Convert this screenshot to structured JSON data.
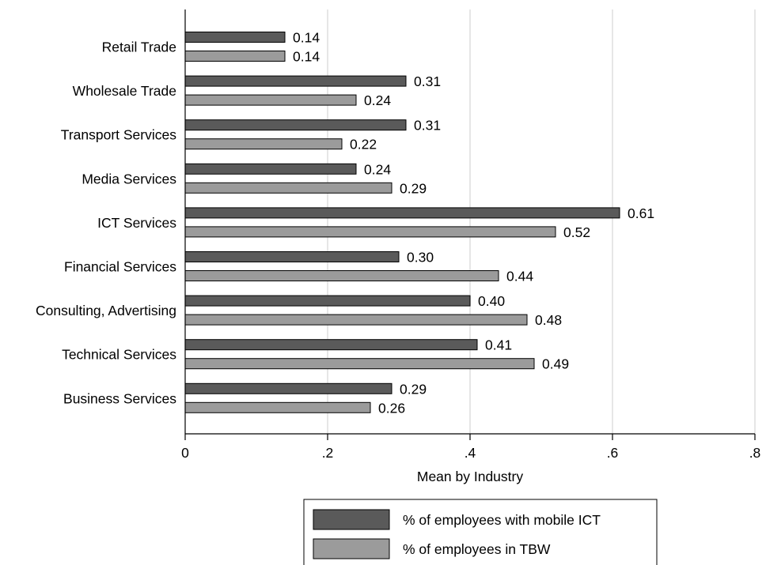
{
  "chart_data": {
    "type": "bar",
    "orientation": "horizontal",
    "categories": [
      "Retail Trade",
      "Wholesale Trade",
      "Transport Services",
      "Media Services",
      "ICT Services",
      "Financial Services",
      "Consulting, Advertising",
      "Technical Services",
      "Business Services"
    ],
    "series": [
      {
        "name": "% of employees with mobile ICT",
        "color": "#5a5a5a",
        "values": [
          0.14,
          0.31,
          0.31,
          0.24,
          0.61,
          0.3,
          0.4,
          0.41,
          0.29
        ],
        "labels": [
          "0.14",
          "0.31",
          "0.31",
          "0.24",
          "0.61",
          "0.30",
          "0.40",
          "0.41",
          "0.29"
        ]
      },
      {
        "name": "% of employees in TBW",
        "color": "#9b9b9b",
        "values": [
          0.14,
          0.24,
          0.22,
          0.29,
          0.52,
          0.44,
          0.48,
          0.49,
          0.26
        ],
        "labels": [
          "0.14",
          "0.24",
          "0.22",
          "0.29",
          "0.52",
          "0.44",
          "0.48",
          "0.49",
          "0.26"
        ]
      }
    ],
    "xlabel": "Mean by Industry",
    "xlim": [
      0,
      0.8
    ],
    "xticks": [
      0,
      0.2,
      0.4,
      0.6,
      0.8
    ],
    "xtick_labels": [
      "0",
      ".2",
      ".4",
      ".6",
      ".8"
    ],
    "grid": true,
    "legend_position": "bottom-right"
  }
}
